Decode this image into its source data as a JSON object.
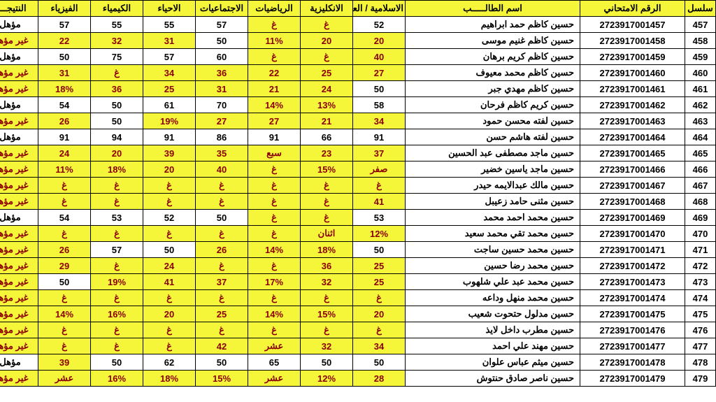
{
  "colors": {
    "header_bg": "#f5f539",
    "highlight_bg": "#f5f539",
    "fail_text": "#8b0000",
    "border": "#000000",
    "page_bg": "#ffffff"
  },
  "headers": {
    "seq": "سلسل",
    "exam_no": "الرقم الامتحاني",
    "name": "اسم الطالـــــب",
    "islamic": "الاسلامية / العربية",
    "english": "الانكليزية",
    "math": "الرياضيات",
    "social": "الاجتماعيات",
    "bio": "الاحياء",
    "chem": "الكيمياء",
    "phys": "الفيزياء",
    "result": "النتيجـــة"
  },
  "rows": [
    {
      "seq": "457",
      "exam": "2723917001457",
      "name": "حسين كاظم حمد ابراهيم",
      "v": [
        {
          "t": "52",
          "h": 0,
          "r": 0
        },
        {
          "t": "غ",
          "h": 1,
          "r": 1
        },
        {
          "t": "غ",
          "h": 1,
          "r": 1
        },
        {
          "t": "57",
          "h": 0,
          "r": 0
        },
        {
          "t": "55",
          "h": 0,
          "r": 0
        },
        {
          "t": "55",
          "h": 0,
          "r": 0
        },
        {
          "t": "57",
          "h": 0,
          "r": 0
        },
        {
          "t": "مؤهل",
          "h": 0,
          "r": 0
        }
      ]
    },
    {
      "seq": "458",
      "exam": "2723917001458",
      "name": "حسين كاظم غنيم موسى",
      "v": [
        {
          "t": "20",
          "h": 1,
          "r": 1
        },
        {
          "t": "20",
          "h": 1,
          "r": 1
        },
        {
          "t": "11%",
          "h": 1,
          "r": 1
        },
        {
          "t": "50",
          "h": 0,
          "r": 0
        },
        {
          "t": "31",
          "h": 1,
          "r": 1
        },
        {
          "t": "32",
          "h": 1,
          "r": 1
        },
        {
          "t": "22",
          "h": 1,
          "r": 1
        },
        {
          "t": "غير مؤهل",
          "h": 1,
          "r": 1
        }
      ]
    },
    {
      "seq": "459",
      "exam": "2723917001459",
      "name": "حسين كاظم كريم برهان",
      "v": [
        {
          "t": "40",
          "h": 1,
          "r": 1
        },
        {
          "t": "غ",
          "h": 1,
          "r": 1
        },
        {
          "t": "غ",
          "h": 1,
          "r": 1
        },
        {
          "t": "60",
          "h": 0,
          "r": 0
        },
        {
          "t": "57",
          "h": 0,
          "r": 0
        },
        {
          "t": "75",
          "h": 0,
          "r": 0
        },
        {
          "t": "50",
          "h": 0,
          "r": 0
        },
        {
          "t": "مؤهل",
          "h": 0,
          "r": 0
        }
      ]
    },
    {
      "seq": "460",
      "exam": "2723917001460",
      "name": "حسين كاظم محمد معيوف",
      "v": [
        {
          "t": "27",
          "h": 1,
          "r": 1
        },
        {
          "t": "25",
          "h": 1,
          "r": 1
        },
        {
          "t": "22",
          "h": 1,
          "r": 1
        },
        {
          "t": "36",
          "h": 1,
          "r": 1
        },
        {
          "t": "34",
          "h": 1,
          "r": 1
        },
        {
          "t": "غ",
          "h": 1,
          "r": 1
        },
        {
          "t": "31",
          "h": 1,
          "r": 1
        },
        {
          "t": "غير مؤهل",
          "h": 1,
          "r": 1
        }
      ]
    },
    {
      "seq": "461",
      "exam": "2723917001461",
      "name": "حسين كاظم مهدي جبر",
      "v": [
        {
          "t": "50",
          "h": 0,
          "r": 0
        },
        {
          "t": "24",
          "h": 1,
          "r": 1
        },
        {
          "t": "21",
          "h": 1,
          "r": 1
        },
        {
          "t": "31",
          "h": 1,
          "r": 1
        },
        {
          "t": "25",
          "h": 1,
          "r": 1
        },
        {
          "t": "36",
          "h": 1,
          "r": 1
        },
        {
          "t": "18%",
          "h": 1,
          "r": 1
        },
        {
          "t": "غير مؤهل",
          "h": 1,
          "r": 1
        }
      ]
    },
    {
      "seq": "462",
      "exam": "2723917001462",
      "name": "حسين كريم كاظم فرحان",
      "v": [
        {
          "t": "58",
          "h": 0,
          "r": 0
        },
        {
          "t": "13%",
          "h": 1,
          "r": 1
        },
        {
          "t": "14%",
          "h": 1,
          "r": 1
        },
        {
          "t": "70",
          "h": 0,
          "r": 0
        },
        {
          "t": "61",
          "h": 0,
          "r": 0
        },
        {
          "t": "50",
          "h": 0,
          "r": 0
        },
        {
          "t": "54",
          "h": 0,
          "r": 0
        },
        {
          "t": "مؤهل",
          "h": 0,
          "r": 0
        }
      ]
    },
    {
      "seq": "463",
      "exam": "2723917001463",
      "name": "حسين لفته محسن حمود",
      "v": [
        {
          "t": "34",
          "h": 1,
          "r": 1
        },
        {
          "t": "21",
          "h": 1,
          "r": 1
        },
        {
          "t": "27",
          "h": 1,
          "r": 1
        },
        {
          "t": "27",
          "h": 1,
          "r": 1
        },
        {
          "t": "19%",
          "h": 1,
          "r": 1
        },
        {
          "t": "50",
          "h": 0,
          "r": 0
        },
        {
          "t": "26",
          "h": 1,
          "r": 1
        },
        {
          "t": "غير مؤهل",
          "h": 1,
          "r": 1
        }
      ]
    },
    {
      "seq": "464",
      "exam": "2723917001464",
      "name": "حسين لفته هاشم حسن",
      "v": [
        {
          "t": "91",
          "h": 0,
          "r": 0
        },
        {
          "t": "66",
          "h": 0,
          "r": 0
        },
        {
          "t": "91",
          "h": 0,
          "r": 0
        },
        {
          "t": "86",
          "h": 0,
          "r": 0
        },
        {
          "t": "91",
          "h": 0,
          "r": 0
        },
        {
          "t": "94",
          "h": 0,
          "r": 0
        },
        {
          "t": "91",
          "h": 0,
          "r": 0
        },
        {
          "t": "مؤهل",
          "h": 0,
          "r": 0
        }
      ]
    },
    {
      "seq": "465",
      "exam": "2723917001465",
      "name": "حسين ماجد مصطفى عبد الحسين",
      "v": [
        {
          "t": "37",
          "h": 1,
          "r": 1
        },
        {
          "t": "23",
          "h": 1,
          "r": 1
        },
        {
          "t": "سبع",
          "h": 1,
          "r": 1
        },
        {
          "t": "35",
          "h": 1,
          "r": 1
        },
        {
          "t": "39",
          "h": 1,
          "r": 1
        },
        {
          "t": "20",
          "h": 1,
          "r": 1
        },
        {
          "t": "24",
          "h": 1,
          "r": 1
        },
        {
          "t": "غير مؤهل",
          "h": 1,
          "r": 1
        }
      ]
    },
    {
      "seq": "466",
      "exam": "2723917001466",
      "name": "حسين ماجد ياسين خضير",
      "v": [
        {
          "t": "صفر",
          "h": 1,
          "r": 1
        },
        {
          "t": "15%",
          "h": 1,
          "r": 1
        },
        {
          "t": "غ",
          "h": 1,
          "r": 1
        },
        {
          "t": "40",
          "h": 1,
          "r": 1
        },
        {
          "t": "20",
          "h": 1,
          "r": 1
        },
        {
          "t": "18%",
          "h": 1,
          "r": 1
        },
        {
          "t": "11%",
          "h": 1,
          "r": 1
        },
        {
          "t": "غير مؤهل",
          "h": 1,
          "r": 1
        }
      ]
    },
    {
      "seq": "467",
      "exam": "2723917001467",
      "name": "حسين مالك عبدالايمه حيدر",
      "v": [
        {
          "t": "غ",
          "h": 1,
          "r": 1
        },
        {
          "t": "غ",
          "h": 1,
          "r": 1
        },
        {
          "t": "غ",
          "h": 1,
          "r": 1
        },
        {
          "t": "غ",
          "h": 1,
          "r": 1
        },
        {
          "t": "غ",
          "h": 1,
          "r": 1
        },
        {
          "t": "غ",
          "h": 1,
          "r": 1
        },
        {
          "t": "غ",
          "h": 1,
          "r": 1
        },
        {
          "t": "غير مؤهل",
          "h": 1,
          "r": 1
        }
      ]
    },
    {
      "seq": "468",
      "exam": "2723917001468",
      "name": "حسين مثنى حامد زعيبل",
      "v": [
        {
          "t": "41",
          "h": 1,
          "r": 1
        },
        {
          "t": "غ",
          "h": 1,
          "r": 1
        },
        {
          "t": "غ",
          "h": 1,
          "r": 1
        },
        {
          "t": "غ",
          "h": 1,
          "r": 1
        },
        {
          "t": "غ",
          "h": 1,
          "r": 1
        },
        {
          "t": "غ",
          "h": 1,
          "r": 1
        },
        {
          "t": "غ",
          "h": 1,
          "r": 1
        },
        {
          "t": "غير مؤهل",
          "h": 1,
          "r": 1
        }
      ]
    },
    {
      "seq": "469",
      "exam": "2723917001469",
      "name": "حسين محمد احمد محمد",
      "v": [
        {
          "t": "53",
          "h": 0,
          "r": 0
        },
        {
          "t": "غ",
          "h": 1,
          "r": 1
        },
        {
          "t": "غ",
          "h": 1,
          "r": 1
        },
        {
          "t": "50",
          "h": 0,
          "r": 0
        },
        {
          "t": "52",
          "h": 0,
          "r": 0
        },
        {
          "t": "53",
          "h": 0,
          "r": 0
        },
        {
          "t": "54",
          "h": 0,
          "r": 0
        },
        {
          "t": "مؤهل",
          "h": 0,
          "r": 0
        }
      ]
    },
    {
      "seq": "470",
      "exam": "2723917001470",
      "name": "حسين محمد تقي محمد سعيد",
      "v": [
        {
          "t": "12%",
          "h": 1,
          "r": 1
        },
        {
          "t": "اثنان",
          "h": 1,
          "r": 1
        },
        {
          "t": "غ",
          "h": 1,
          "r": 1
        },
        {
          "t": "غ",
          "h": 1,
          "r": 1
        },
        {
          "t": "غ",
          "h": 1,
          "r": 1
        },
        {
          "t": "غ",
          "h": 1,
          "r": 1
        },
        {
          "t": "غ",
          "h": 1,
          "r": 1
        },
        {
          "t": "غير مؤهل",
          "h": 1,
          "r": 1
        }
      ]
    },
    {
      "seq": "471",
      "exam": "2723917001471",
      "name": "حسين محمد حسين ساجت",
      "v": [
        {
          "t": "50",
          "h": 0,
          "r": 0
        },
        {
          "t": "18%",
          "h": 1,
          "r": 1
        },
        {
          "t": "14%",
          "h": 1,
          "r": 1
        },
        {
          "t": "26",
          "h": 1,
          "r": 1
        },
        {
          "t": "50",
          "h": 0,
          "r": 0
        },
        {
          "t": "57",
          "h": 0,
          "r": 0
        },
        {
          "t": "26",
          "h": 1,
          "r": 1
        },
        {
          "t": "غير مؤهل",
          "h": 1,
          "r": 1
        }
      ]
    },
    {
      "seq": "472",
      "exam": "2723917001472",
      "name": "حسين محمد رضا حسين",
      "v": [
        {
          "t": "25",
          "h": 1,
          "r": 1
        },
        {
          "t": "36",
          "h": 1,
          "r": 1
        },
        {
          "t": "غ",
          "h": 1,
          "r": 1
        },
        {
          "t": "غ",
          "h": 1,
          "r": 1
        },
        {
          "t": "24",
          "h": 1,
          "r": 1
        },
        {
          "t": "غ",
          "h": 1,
          "r": 1
        },
        {
          "t": "29",
          "h": 1,
          "r": 1
        },
        {
          "t": "غير مؤهل",
          "h": 1,
          "r": 1
        }
      ]
    },
    {
      "seq": "473",
      "exam": "2723917001473",
      "name": "حسين محمد عبد علي شلهوب",
      "v": [
        {
          "t": "25",
          "h": 1,
          "r": 1
        },
        {
          "t": "32",
          "h": 1,
          "r": 1
        },
        {
          "t": "17%",
          "h": 1,
          "r": 1
        },
        {
          "t": "37",
          "h": 1,
          "r": 1
        },
        {
          "t": "41",
          "h": 1,
          "r": 1
        },
        {
          "t": "19%",
          "h": 1,
          "r": 1
        },
        {
          "t": "50",
          "h": 0,
          "r": 0
        },
        {
          "t": "غير مؤهل",
          "h": 1,
          "r": 1
        }
      ]
    },
    {
      "seq": "474",
      "exam": "2723917001474",
      "name": "حسين محمد منهل وداعه",
      "v": [
        {
          "t": "غ",
          "h": 1,
          "r": 1
        },
        {
          "t": "غ",
          "h": 1,
          "r": 1
        },
        {
          "t": "غ",
          "h": 1,
          "r": 1
        },
        {
          "t": "غ",
          "h": 1,
          "r": 1
        },
        {
          "t": "غ",
          "h": 1,
          "r": 1
        },
        {
          "t": "غ",
          "h": 1,
          "r": 1
        },
        {
          "t": "غ",
          "h": 1,
          "r": 1
        },
        {
          "t": "غير مؤهل",
          "h": 1,
          "r": 1
        }
      ]
    },
    {
      "seq": "475",
      "exam": "2723917001475",
      "name": "حسين مدلول حتحوت شعيب",
      "v": [
        {
          "t": "20",
          "h": 1,
          "r": 1
        },
        {
          "t": "15%",
          "h": 1,
          "r": 1
        },
        {
          "t": "14%",
          "h": 1,
          "r": 1
        },
        {
          "t": "25",
          "h": 1,
          "r": 1
        },
        {
          "t": "20",
          "h": 1,
          "r": 1
        },
        {
          "t": "16%",
          "h": 1,
          "r": 1
        },
        {
          "t": "14%",
          "h": 1,
          "r": 1
        },
        {
          "t": "غير مؤهل",
          "h": 1,
          "r": 1
        }
      ]
    },
    {
      "seq": "476",
      "exam": "2723917001476",
      "name": "حسين مطرب داخل لايذ",
      "v": [
        {
          "t": "غ",
          "h": 1,
          "r": 1
        },
        {
          "t": "غ",
          "h": 1,
          "r": 1
        },
        {
          "t": "غ",
          "h": 1,
          "r": 1
        },
        {
          "t": "غ",
          "h": 1,
          "r": 1
        },
        {
          "t": "غ",
          "h": 1,
          "r": 1
        },
        {
          "t": "غ",
          "h": 1,
          "r": 1
        },
        {
          "t": "غ",
          "h": 1,
          "r": 1
        },
        {
          "t": "غير مؤهل",
          "h": 1,
          "r": 1
        }
      ]
    },
    {
      "seq": "477",
      "exam": "2723917001477",
      "name": "حسين مهند علي احمد",
      "v": [
        {
          "t": "34",
          "h": 1,
          "r": 1
        },
        {
          "t": "32",
          "h": 1,
          "r": 1
        },
        {
          "t": "عشر",
          "h": 1,
          "r": 1
        },
        {
          "t": "42",
          "h": 1,
          "r": 1
        },
        {
          "t": "غ",
          "h": 1,
          "r": 1
        },
        {
          "t": "غ",
          "h": 1,
          "r": 1
        },
        {
          "t": "غ",
          "h": 1,
          "r": 1
        },
        {
          "t": "غير مؤهل",
          "h": 1,
          "r": 1
        }
      ]
    },
    {
      "seq": "478",
      "exam": "2723917001478",
      "name": "حسين ميثم عباس علوان",
      "v": [
        {
          "t": "50",
          "h": 0,
          "r": 0
        },
        {
          "t": "50",
          "h": 0,
          "r": 0
        },
        {
          "t": "65",
          "h": 0,
          "r": 0
        },
        {
          "t": "50",
          "h": 0,
          "r": 0
        },
        {
          "t": "62",
          "h": 0,
          "r": 0
        },
        {
          "t": "50",
          "h": 0,
          "r": 0
        },
        {
          "t": "39",
          "h": 1,
          "r": 1
        },
        {
          "t": "مؤهل",
          "h": 0,
          "r": 0
        }
      ]
    },
    {
      "seq": "479",
      "exam": "2723917001479",
      "name": "حسين ناصر صادق حنتوش",
      "v": [
        {
          "t": "28",
          "h": 1,
          "r": 1
        },
        {
          "t": "12%",
          "h": 1,
          "r": 1
        },
        {
          "t": "عشر",
          "h": 1,
          "r": 1
        },
        {
          "t": "15%",
          "h": 1,
          "r": 1
        },
        {
          "t": "18%",
          "h": 1,
          "r": 1
        },
        {
          "t": "16%",
          "h": 1,
          "r": 1
        },
        {
          "t": "عشر",
          "h": 1,
          "r": 1
        },
        {
          "t": "غير مؤهل",
          "h": 1,
          "r": 1
        }
      ]
    }
  ]
}
